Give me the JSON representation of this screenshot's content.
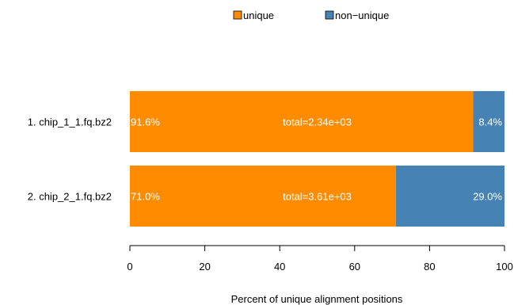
{
  "chart_data": {
    "type": "bar",
    "orientation": "horizontal",
    "stacked": true,
    "categories": [
      "1. chip_1_1.fq.bz2",
      "2. chip_2_1.fq.bz2"
    ],
    "series": [
      {
        "name": "unique",
        "color": "#FF8C00",
        "values": [
          91.6,
          71.0
        ],
        "labels": [
          "91.6%",
          "71.0%"
        ]
      },
      {
        "name": "non−unique",
        "color": "#4682B4",
        "values": [
          8.4,
          29.0
        ],
        "labels": [
          "8.4%",
          "29.0%"
        ]
      }
    ],
    "totals": [
      "total=2.34e+03",
      "total=3.61e+03"
    ],
    "xlabel": "Percent of unique alignment positions",
    "xlim": [
      0,
      100
    ],
    "xticks": [
      0,
      20,
      40,
      60,
      80,
      100
    ],
    "legend_position": "top-center",
    "grid": false
  }
}
